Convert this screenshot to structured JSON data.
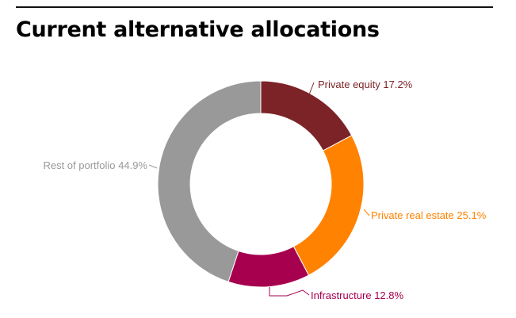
{
  "chart_data": {
    "type": "pie",
    "donut": true,
    "title": "Current alternative allocations",
    "slices": [
      {
        "label": "Private equity",
        "value": 17.2,
        "display": "Private equity 17.2%",
        "color": "#7b2327"
      },
      {
        "label": "Private real estate",
        "value": 25.1,
        "display": "Private real estate 25.1%",
        "color": "#ff8200"
      },
      {
        "label": "Infrastructure",
        "value": 12.8,
        "display": "Infrastructure 12.8%",
        "color": "#a6004f"
      },
      {
        "label": "Rest of portfolio",
        "value": 44.9,
        "display": "Rest of portfolio 44.9%",
        "color": "#999999"
      }
    ],
    "start_angle": "top",
    "direction": "clockwise",
    "legend": "none"
  }
}
